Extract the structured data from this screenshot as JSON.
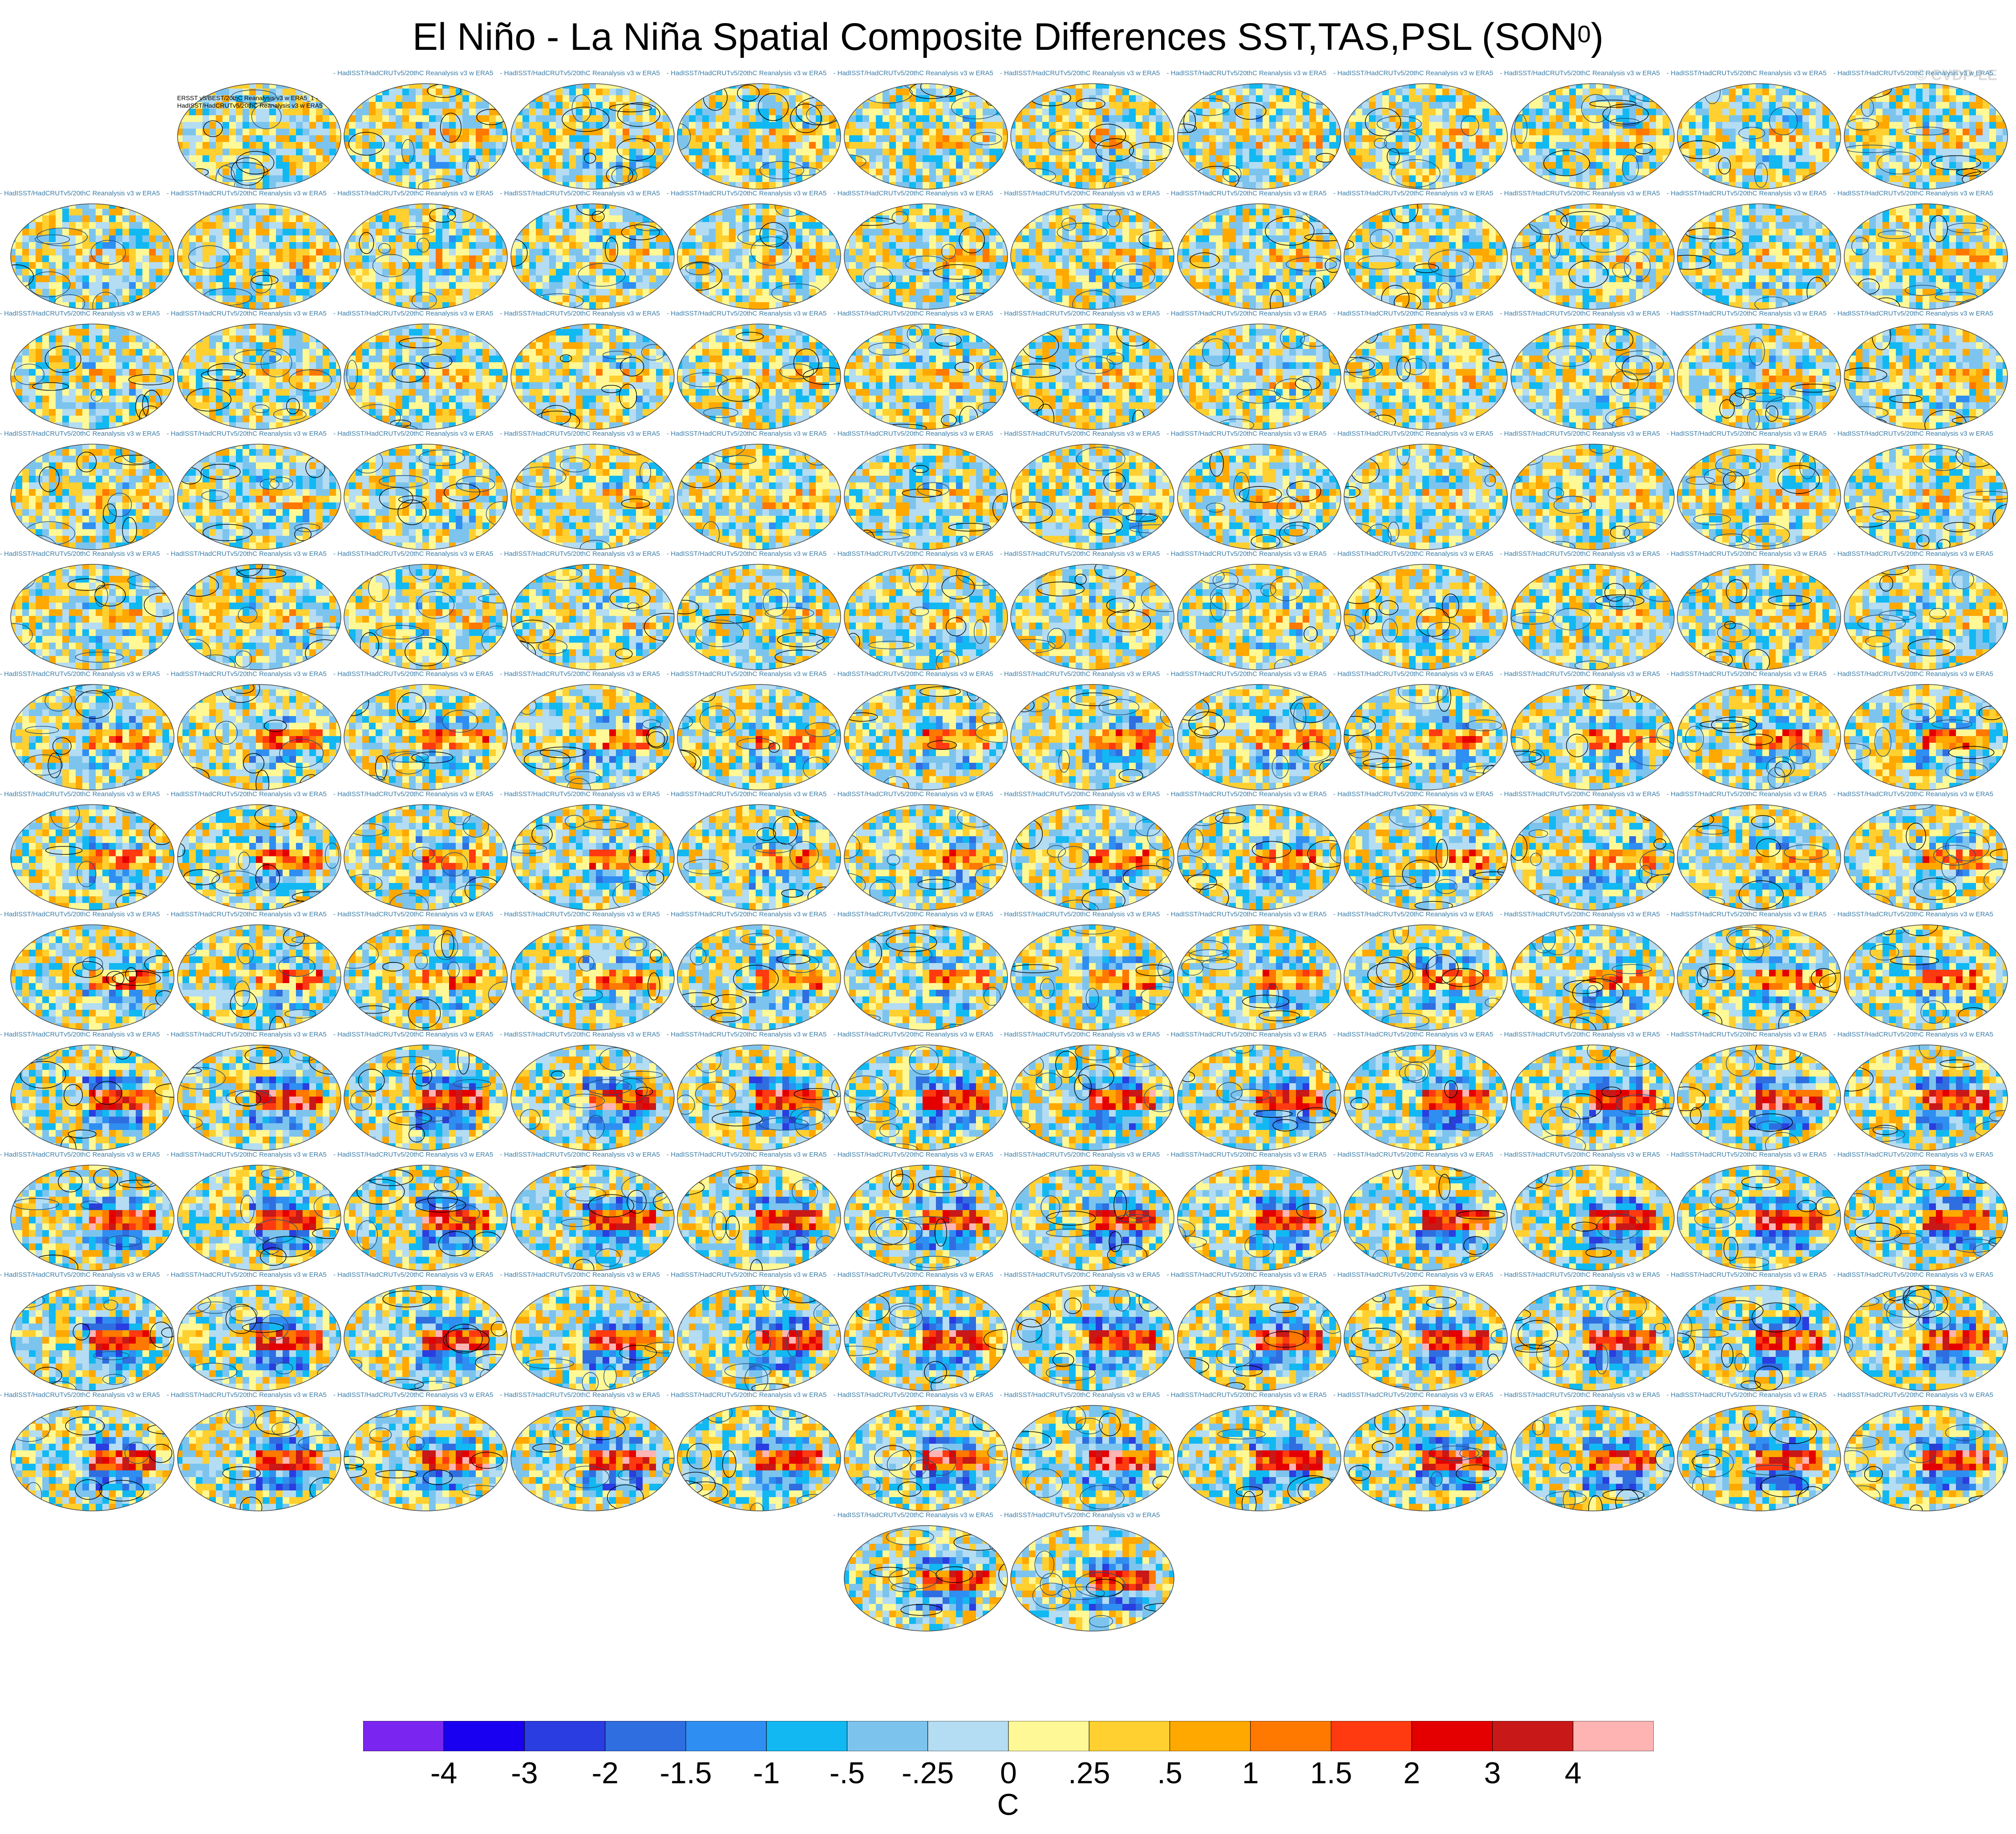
{
  "chart_data": {
    "type": "other",
    "title": "El Niño - La Niña Spatial Composite Differences SST,TAS,PSL (SON",
    "title_superscript": "0",
    "title_suffix": ")",
    "copyright": "© CVDP-LE",
    "first_panel_title": "ERSST v5/BEST/20thC Reanalysis v3 w ERA5_1 -\nHadISST/HadCRUTv5/20thC Reanalysis v3 w ERA5",
    "panel_title_template": "- HadISST/HadCRUTv5/20thC Reanalysis v3 w ERA5",
    "panel_count": 146,
    "rows": [
      11,
      12,
      12,
      12,
      12,
      12,
      12,
      12,
      12,
      12,
      12,
      12,
      2
    ],
    "colorbar": {
      "units": "C",
      "tick_labels": [
        "-4",
        "-3",
        "-2",
        "-1.5",
        "-1",
        "-.5",
        "-.25",
        "0",
        ".25",
        ".5",
        "1",
        "1.5",
        "2",
        "3",
        "4"
      ],
      "colors": [
        "#7b26f0",
        "#1a00f0",
        "#2a3de0",
        "#2f6ee0",
        "#2f8ef2",
        "#12b8f2",
        "#7cc4ee",
        "#b4dcf2",
        "#fff896",
        "#ffd030",
        "#ffa800",
        "#ff7800",
        "#ff3a10",
        "#e40000",
        "#c81818",
        "#ffb4b4"
      ]
    }
  }
}
